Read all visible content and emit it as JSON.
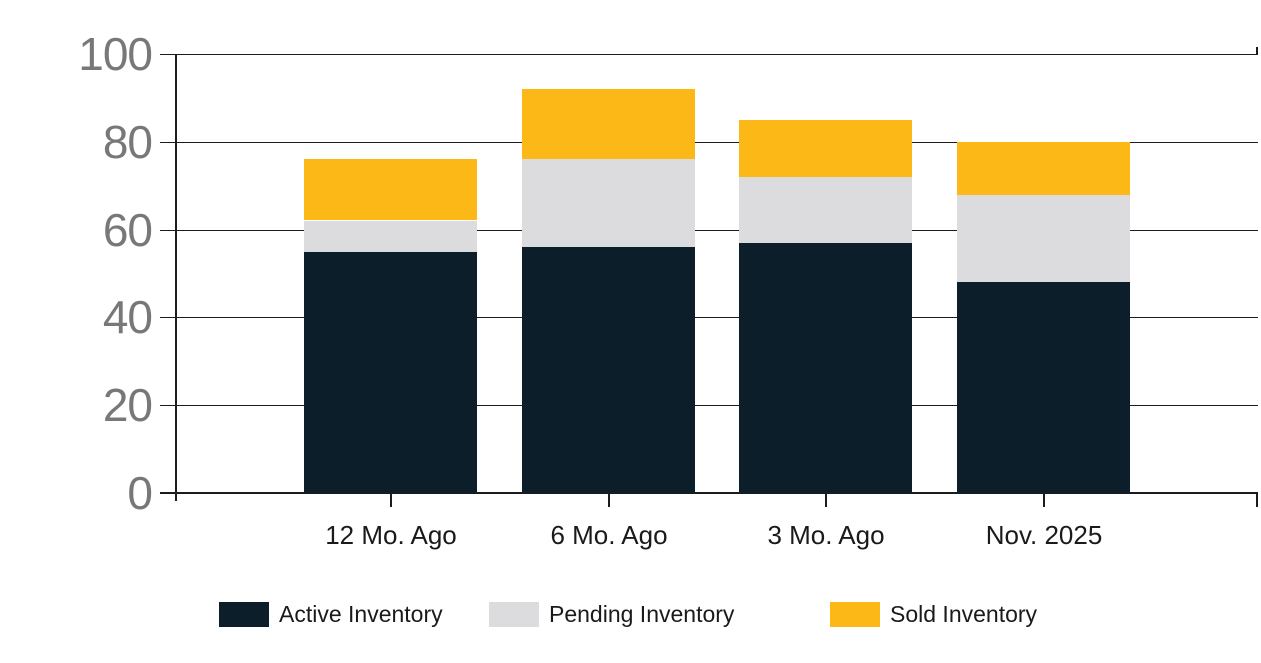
{
  "chart_data": {
    "type": "bar",
    "stacked": true,
    "title": "",
    "categories": [
      "12 Mo. Ago",
      "6 Mo. Ago",
      "3 Mo. Ago",
      "Nov. 2025"
    ],
    "series": [
      {
        "name": "Active Inventory",
        "color": "#0b1e2a",
        "values": [
          55,
          56,
          57,
          48
        ]
      },
      {
        "name": "Pending Inventory",
        "color": "#dcdcde",
        "values": [
          7,
          20,
          15,
          20
        ]
      },
      {
        "name": "Sold Inventory",
        "color": "#fbb817",
        "values": [
          14,
          16,
          13,
          12
        ]
      }
    ],
    "stack_totals": [
      76,
      92,
      85,
      80
    ],
    "xlabel": "",
    "ylabel": "",
    "ylim": [
      0,
      100
    ],
    "yticks": [
      0,
      20,
      40,
      60,
      80,
      100
    ],
    "grid": true,
    "legend_position": "bottom",
    "colors": {
      "background": "#ffffff",
      "grid_line": "#1c1c1c",
      "axis_line": "#1c1c1c",
      "y_tick_label": "#77787a",
      "x_tick_label": "#1a1a1a",
      "legend_text": "#1a1a1a"
    }
  }
}
